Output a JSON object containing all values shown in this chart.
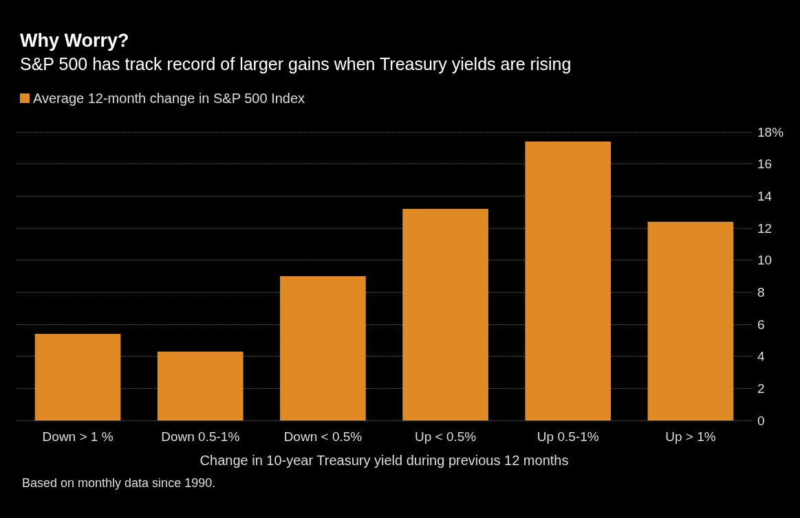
{
  "chart_data": {
    "type": "bar",
    "title": "Why Worry?",
    "subtitle": "S&P 500 has track record of larger gains when Treasury yields are rising",
    "xlabel": "Change in 10-year Treasury yield during previous 12 months",
    "categories": [
      "Down > 1 %",
      "Down 0.5-1%",
      "Down < 0.5%",
      "Up < 0.5%",
      "Up 0.5-1%",
      "Up > 1%"
    ],
    "series": [
      {
        "name": "Average 12-month change in S&P 500 Index",
        "color": "#e08a26",
        "values": [
          5.4,
          4.3,
          9.0,
          13.2,
          17.4,
          12.4
        ]
      }
    ],
    "ylim": [
      0,
      18
    ],
    "yticks": [
      0,
      2,
      4,
      6,
      8,
      10,
      12,
      14,
      16,
      {
        "value": 18,
        "label": "18%"
      }
    ],
    "grid": "y",
    "legend": "top left",
    "annotations": [
      "Based on monthly data since 1990."
    ]
  }
}
